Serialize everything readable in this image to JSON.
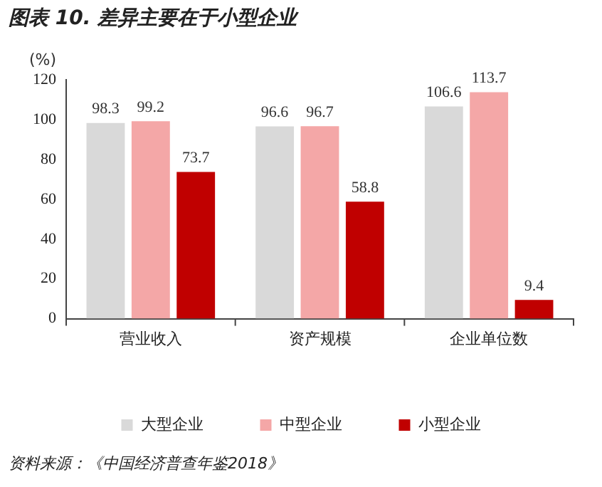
{
  "chart_data": {
    "type": "bar",
    "title": "图表 10. 差异主要在于小型企业",
    "ylabel": "(%)",
    "categories": [
      "营业收入",
      "资产规模",
      "企业单位数"
    ],
    "series": [
      {
        "name": "大型企业",
        "color": "#d9d9d9",
        "values": [
          98.3,
          96.6,
          106.6
        ]
      },
      {
        "name": "中型企业",
        "color": "#f4a7a7",
        "values": [
          99.2,
          96.7,
          113.7
        ]
      },
      {
        "name": "小型企业",
        "color": "#c00000",
        "values": [
          73.7,
          58.8,
          9.4
        ]
      }
    ],
    "ylim": [
      0,
      120
    ],
    "yticks": [
      0,
      20,
      40,
      60,
      80,
      100,
      120
    ],
    "grid": false,
    "legend": "bottom",
    "data_labels": true,
    "annotations": [
      "资料来源：《中国经济普查年鉴2018》"
    ]
  }
}
